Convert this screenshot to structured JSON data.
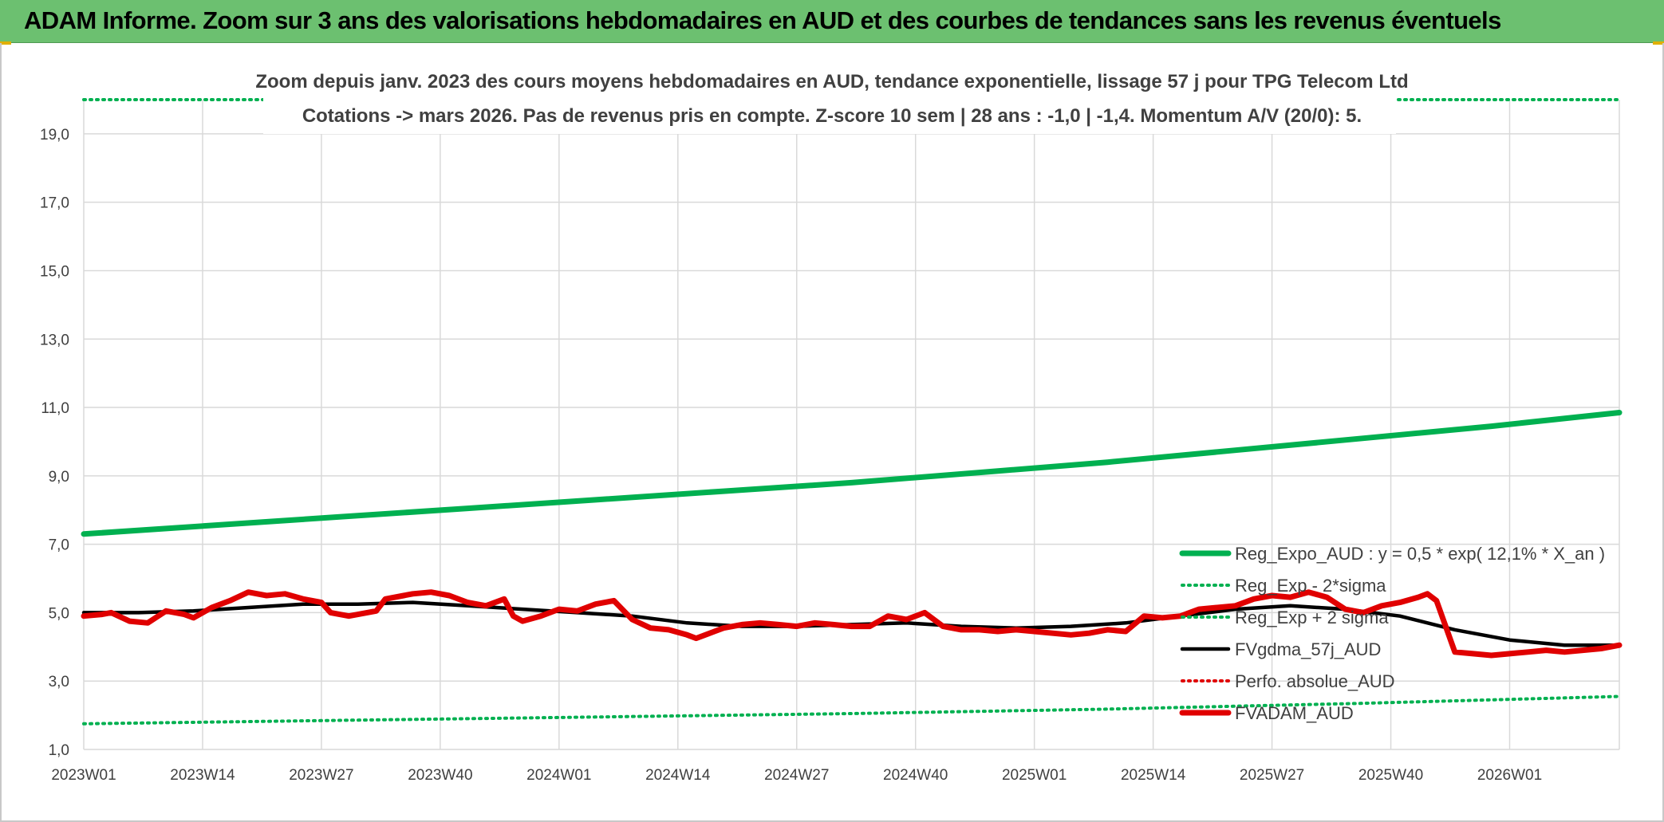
{
  "banner": {
    "title": "ADAM Informe. Zoom sur 3 ans des valorisations hebdomadaires en AUD et des courbes de tendances sans les revenus éventuels"
  },
  "chart_data": {
    "type": "line",
    "title_line1": "Zoom depuis janv. 2023 des cours moyens hebdomadaires en AUD, tendance exponentielle, lissage 57 j pour TPG Telecom Ltd",
    "title_line2": "Cotations -> mars 2026. Pas de revenus pris en compte. Z-score 10 sem | 28 ans : -1,0 | -1,4. Momentum A/V (20/0): 5.",
    "ylim": [
      1.0,
      20.0
    ],
    "y_ticks": [
      "1,0",
      "3,0",
      "5,0",
      "7,0",
      "9,0",
      "11,0",
      "13,0",
      "15,0",
      "17,0",
      "19,0"
    ],
    "y_tick_values": [
      1,
      3,
      5,
      7,
      9,
      11,
      13,
      15,
      17,
      19
    ],
    "x_range_weeks": [
      0,
      168
    ],
    "x_ticks": [
      "2023W01",
      "2023W14",
      "2023W27",
      "2023W40",
      "2024W01",
      "2024W14",
      "2024W27",
      "2024W40",
      "2025W01",
      "2025W14",
      "2025W27",
      "2025W40",
      "2026W01"
    ],
    "x_tick_weeks": [
      0,
      13,
      26,
      39,
      52,
      65,
      78,
      91,
      104,
      117,
      130,
      143,
      156
    ],
    "grid": true,
    "legend_position": "bottom-right",
    "series": [
      {
        "name": "Reg_Expo_AUD : y = 0,5 * exp( 12,1% *  X_an )",
        "style": "solid-thick",
        "color": "#00b050",
        "x": [
          0,
          14,
          28,
          42,
          56,
          70,
          84,
          98,
          112,
          126,
          140,
          154,
          168
        ],
        "values": [
          7.3,
          7.55,
          7.8,
          8.05,
          8.3,
          8.55,
          8.8,
          9.1,
          9.4,
          9.75,
          10.1,
          10.45,
          10.85
        ]
      },
      {
        "name": "Reg_Exp - 2*sigma",
        "style": "dotted",
        "color": "#00b050",
        "x": [
          0,
          28,
          56,
          84,
          112,
          140,
          168
        ],
        "values": [
          1.75,
          1.85,
          1.95,
          2.05,
          2.18,
          2.35,
          2.55
        ]
      },
      {
        "name": "Reg_Exp + 2 sigma",
        "style": "dotted",
        "color": "#00b050",
        "x": [
          0,
          168
        ],
        "values": [
          20.0,
          20.0
        ]
      },
      {
        "name": "FVgdma_57j_AUD",
        "style": "solid",
        "color": "#000000",
        "x": [
          0,
          6,
          12,
          18,
          24,
          30,
          36,
          42,
          48,
          54,
          60,
          66,
          72,
          78,
          84,
          90,
          96,
          102,
          108,
          114,
          120,
          126,
          132,
          138,
          144,
          150,
          156,
          162,
          168
        ],
        "values": [
          5.0,
          5.0,
          5.05,
          5.15,
          5.25,
          5.25,
          5.3,
          5.2,
          5.1,
          5.0,
          4.9,
          4.7,
          4.6,
          4.6,
          4.65,
          4.7,
          4.6,
          4.55,
          4.6,
          4.7,
          4.9,
          5.1,
          5.2,
          5.1,
          4.9,
          4.5,
          4.2,
          4.05,
          4.05
        ]
      },
      {
        "name": "Perfo. absolue_AUD",
        "style": "dotted",
        "color": "#e00000",
        "x": [],
        "values": []
      },
      {
        "name": "FVADAM_AUD",
        "style": "solid-thick",
        "color": "#e00000",
        "x": [
          0,
          2,
          3,
          5,
          7,
          9,
          11,
          12,
          14,
          16,
          18,
          20,
          22,
          24,
          26,
          27,
          29,
          30,
          32,
          33,
          35,
          36,
          38,
          40,
          42,
          44,
          46,
          47,
          48,
          50,
          52,
          54,
          56,
          58,
          60,
          62,
          64,
          66,
          67,
          69,
          70,
          72,
          74,
          76,
          78,
          80,
          82,
          84,
          86,
          88,
          90,
          92,
          94,
          96,
          98,
          100,
          102,
          104,
          106,
          108,
          110,
          112,
          114,
          116,
          118,
          120,
          122,
          124,
          126,
          128,
          130,
          132,
          134,
          136,
          138,
          140,
          142,
          144,
          146,
          147,
          148,
          150,
          152,
          154,
          156,
          158,
          160,
          162,
          164,
          166,
          168
        ],
        "values": [
          4.9,
          4.95,
          5.0,
          4.75,
          4.7,
          5.05,
          4.95,
          4.85,
          5.15,
          5.35,
          5.6,
          5.5,
          5.55,
          5.4,
          5.3,
          5.0,
          4.9,
          4.95,
          5.05,
          5.4,
          5.5,
          5.55,
          5.6,
          5.5,
          5.3,
          5.2,
          5.4,
          4.9,
          4.75,
          4.9,
          5.1,
          5.05,
          5.25,
          5.35,
          4.8,
          4.55,
          4.5,
          4.35,
          4.25,
          4.45,
          4.55,
          4.65,
          4.7,
          4.65,
          4.6,
          4.7,
          4.65,
          4.6,
          4.6,
          4.9,
          4.8,
          5.0,
          4.6,
          4.5,
          4.5,
          4.45,
          4.5,
          4.45,
          4.4,
          4.35,
          4.4,
          4.5,
          4.45,
          4.9,
          4.85,
          4.9,
          5.1,
          5.15,
          5.2,
          5.4,
          5.5,
          5.45,
          5.6,
          5.45,
          5.1,
          5.0,
          5.2,
          5.3,
          5.45,
          5.55,
          5.35,
          3.85,
          3.8,
          3.75,
          3.8,
          3.85,
          3.9,
          3.85,
          3.9,
          3.95,
          4.05
        ]
      }
    ]
  }
}
